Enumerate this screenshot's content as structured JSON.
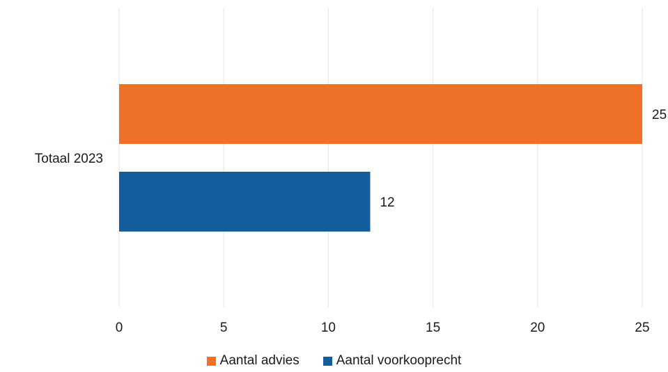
{
  "chart_data": {
    "type": "bar",
    "orientation": "horizontal",
    "categories": [
      "Totaal 2023"
    ],
    "series": [
      {
        "name": "Aantal advies",
        "values": [
          25
        ],
        "color": "#ee7127"
      },
      {
        "name": "Aantal voorkooprecht",
        "values": [
          12
        ],
        "color": "#135d9d"
      }
    ],
    "xlim": [
      0,
      25
    ],
    "xticks": [
      "0",
      "5",
      "10",
      "15",
      "20",
      "25"
    ],
    "grid": "vertical",
    "legend": "bottom",
    "data_labels": true
  }
}
